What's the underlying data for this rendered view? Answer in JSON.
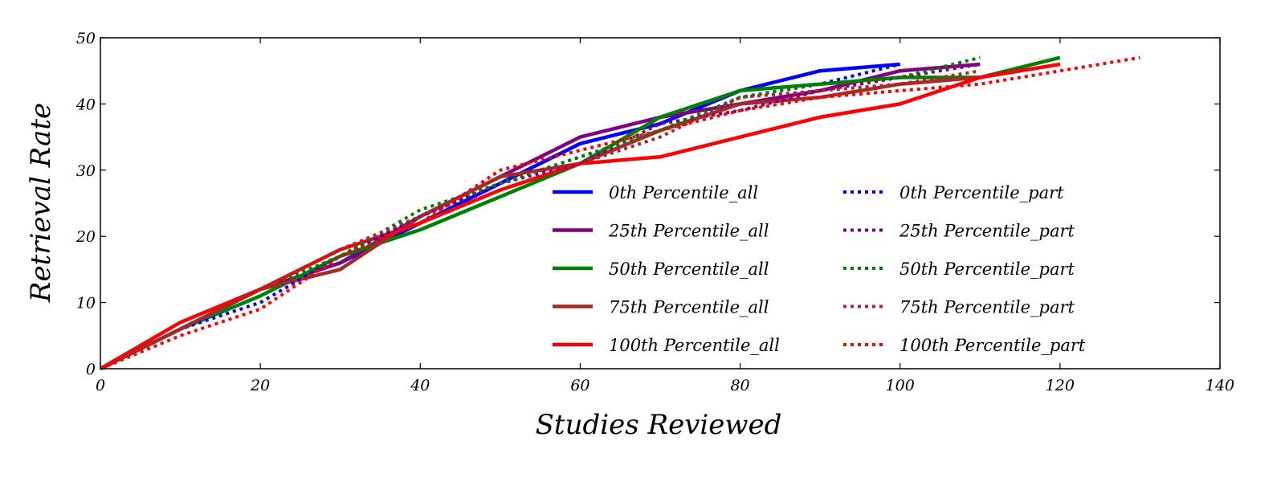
{
  "chart_data": {
    "type": "line",
    "title": "",
    "xlabel": "Studies Reviewed",
    "ylabel": "Retrieval Rate",
    "xlim": [
      0,
      140
    ],
    "ylim": [
      0,
      50
    ],
    "xticks": [
      "0",
      "20",
      "40",
      "60",
      "80",
      "100",
      "120",
      "140"
    ],
    "yticks": [
      "0",
      "10",
      "20",
      "30",
      "40",
      "50"
    ],
    "grid": false,
    "legend_placement": "center-right",
    "series": [
      {
        "name": "0th Percentile_all",
        "color": "#0000ff",
        "style": "solid",
        "x": [
          0,
          10,
          20,
          30,
          40,
          50,
          60,
          70,
          80,
          90,
          100
        ],
        "y": [
          0,
          6,
          12,
          16,
          22,
          28,
          34,
          37,
          42,
          45,
          46
        ]
      },
      {
        "name": "25th Percentile_all",
        "color": "#800080",
        "style": "solid",
        "x": [
          0,
          10,
          20,
          30,
          40,
          50,
          60,
          70,
          80,
          90,
          100,
          110
        ],
        "y": [
          0,
          6,
          12,
          16,
          23,
          29,
          35,
          38,
          40,
          42,
          45,
          46
        ]
      },
      {
        "name": "50th Percentile_all",
        "color": "#008000",
        "style": "solid",
        "x": [
          0,
          10,
          20,
          30,
          40,
          50,
          60,
          70,
          80,
          90,
          100,
          110,
          120
        ],
        "y": [
          0,
          6,
          11,
          17,
          21,
          26,
          31,
          38,
          42,
          43,
          44,
          44,
          47
        ]
      },
      {
        "name": "75th Percentile_all",
        "color": "#a52a2a",
        "style": "solid",
        "x": [
          0,
          10,
          20,
          30,
          40,
          50,
          60,
          70,
          80,
          90,
          100,
          110
        ],
        "y": [
          0,
          6,
          12,
          15,
          23,
          29,
          31,
          36,
          40,
          41,
          43,
          44
        ]
      },
      {
        "name": "100th Percentile_all",
        "color": "#ff0000",
        "style": "solid",
        "x": [
          0,
          10,
          20,
          30,
          40,
          50,
          60,
          70,
          80,
          90,
          100,
          110,
          120
        ],
        "y": [
          0,
          7,
          12,
          18,
          22,
          27,
          31,
          32,
          35,
          38,
          40,
          44,
          46
        ]
      },
      {
        "name": "0th Percentile_part",
        "color": "#0000ff",
        "style": "dotted",
        "x": [
          0,
          10,
          20,
          30,
          40,
          50,
          60,
          70,
          80,
          90,
          100
        ],
        "y": [
          0,
          6,
          10,
          17,
          23,
          28,
          32,
          36,
          41,
          43,
          46
        ]
      },
      {
        "name": "25th Percentile_part",
        "color": "#800080",
        "style": "dotted",
        "x": [
          0,
          10,
          20,
          30,
          40,
          50,
          60,
          70,
          80,
          90,
          100,
          110
        ],
        "y": [
          0,
          6,
          12,
          18,
          23,
          28,
          31,
          37,
          39,
          42,
          44,
          46
        ]
      },
      {
        "name": "50th Percentile_part",
        "color": "#008000",
        "style": "dotted",
        "x": [
          0,
          10,
          20,
          30,
          40,
          50,
          60,
          70,
          80,
          90,
          100,
          110
        ],
        "y": [
          0,
          6,
          12,
          17,
          24,
          28,
          32,
          36,
          41,
          43,
          44,
          47
        ]
      },
      {
        "name": "75th Percentile_part",
        "color": "#a52a2a",
        "style": "dotted",
        "x": [
          0,
          10,
          20,
          30,
          40,
          50,
          60,
          70,
          80,
          90,
          100,
          110
        ],
        "y": [
          0,
          6,
          12,
          18,
          23,
          29,
          31,
          35,
          41,
          42,
          43,
          45
        ]
      },
      {
        "name": "100th Percentile_part",
        "color": "#ff0000",
        "style": "dotted",
        "x": [
          0,
          10,
          20,
          30,
          40,
          50,
          60,
          70,
          80,
          90,
          100,
          110,
          120,
          130
        ],
        "y": [
          0,
          5,
          9,
          17,
          22,
          30,
          33,
          36,
          39,
          41,
          42,
          43,
          45,
          47
        ]
      }
    ]
  }
}
